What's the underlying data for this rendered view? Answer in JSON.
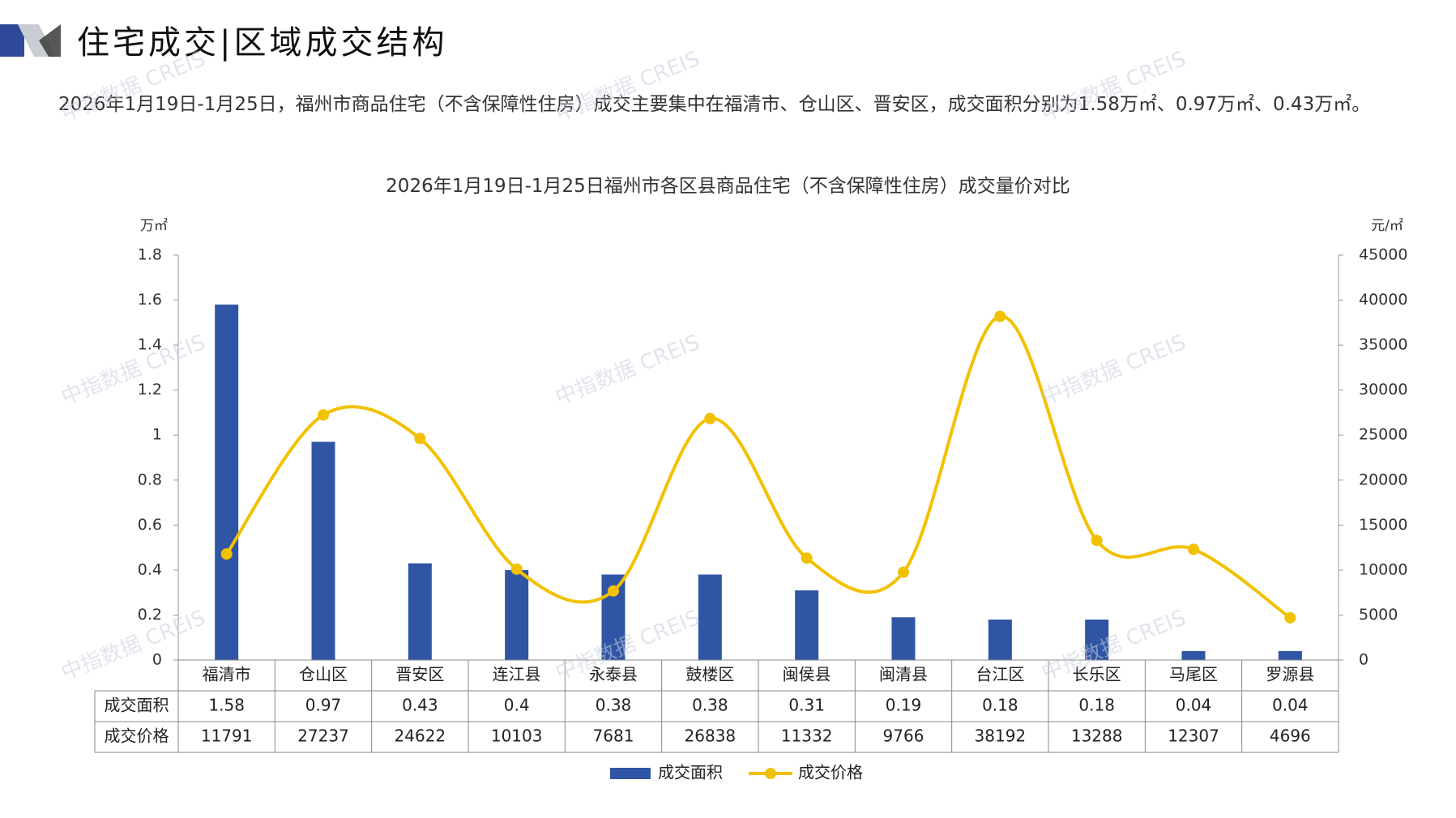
{
  "header": {
    "title": "住宅成交|区域成交结构",
    "summary": "2026年1月19日-1月25日，福州市商品住宅（不含保障性住房）成交主要集中在福清市、仓山区、晋安区，成交面积分别为1.58万㎡、0.97万㎡、0.43万㎡。"
  },
  "watermark": "中指数据 CREIS",
  "colors": {
    "bar": "#2f55a4",
    "line": "#f2c100",
    "axis": "#999999",
    "logo_dark": "#2f4a9a",
    "logo_light": "#c9ccd3"
  },
  "chart_data": {
    "type": "bar",
    "title": "2026年1月19日-1月25日福州市各区县商品住宅（不含保障性住房）成交量价对比",
    "left_unit": "万㎡",
    "right_unit": "元/㎡",
    "categories": [
      "福清市",
      "仓山区",
      "晋安区",
      "连江县",
      "永泰县",
      "鼓楼区",
      "闽侯县",
      "闽清县",
      "台江区",
      "长乐区",
      "马尾区",
      "罗源县"
    ],
    "series": [
      {
        "name": "成交面积",
        "type": "bar",
        "axis": "left",
        "values": [
          1.58,
          0.97,
          0.43,
          0.4,
          0.38,
          0.38,
          0.31,
          0.19,
          0.18,
          0.18,
          0.04,
          0.04
        ],
        "labels": [
          "1.58",
          "0.97",
          "0.43",
          "0.4",
          "0.38",
          "0.38",
          "0.31",
          "0.19",
          "0.18",
          "0.18",
          "0.04",
          "0.04"
        ]
      },
      {
        "name": "成交价格",
        "type": "line",
        "axis": "right",
        "values": [
          11791,
          27237,
          24622,
          10103,
          7681,
          26838,
          11332,
          9766,
          38192,
          13288,
          12307,
          4696
        ],
        "labels": [
          "11791",
          "27237",
          "24622",
          "10103",
          "7681",
          "26838",
          "11332",
          "9766",
          "38192",
          "13288",
          "12307",
          "4696"
        ]
      }
    ],
    "left_ticks": [
      "0",
      "0.2",
      "0.4",
      "0.6",
      "0.8",
      "1",
      "1.2",
      "1.4",
      "1.6",
      "1.8"
    ],
    "right_ticks": [
      "0",
      "5000",
      "10000",
      "15000",
      "20000",
      "25000",
      "30000",
      "35000",
      "40000",
      "45000"
    ],
    "ylim_left": [
      0,
      1.8
    ],
    "ylim_right": [
      0,
      45000
    ],
    "legend_position": "bottom",
    "grid": false
  }
}
